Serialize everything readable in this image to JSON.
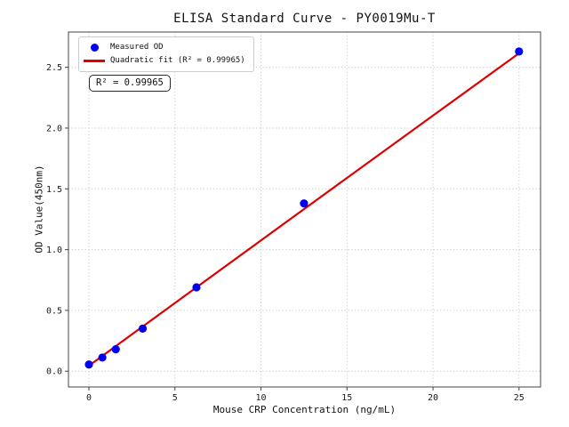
{
  "figure": {
    "title": "ELISA Standard Curve - PY0019Mu-T",
    "xlabel": "Mouse CRP Concentration (ng/mL)",
    "ylabel": "OD Value(450nm)",
    "r_squared_annotation": "R² = 0.99965"
  },
  "legend": {
    "position": "upper-left",
    "items": [
      {
        "label": "Measured OD",
        "marker": "dot",
        "color": "#0000ee"
      },
      {
        "label": "Quadratic fit (R² = 0.99965)",
        "marker": "line",
        "color": "#dd0000"
      }
    ]
  },
  "chart_data": {
    "type": "scatter",
    "title": "ELISA Standard Curve - PY0019Mu-T",
    "xlabel": "Mouse CRP Concentration (ng/mL)",
    "ylabel": "OD Value(450nm)",
    "xlim": [
      -1.19,
      26.25
    ],
    "ylim": [
      -0.13,
      2.79
    ],
    "xticks": [
      0,
      5,
      10,
      15,
      20,
      25
    ],
    "xtick_labels": [
      "0",
      "5",
      "10",
      "15",
      "20",
      "25"
    ],
    "yticks": [
      0,
      0.5,
      1.0,
      1.5,
      2.0,
      2.5
    ],
    "ytick_labels": [
      "0.0",
      "0.5",
      "1.0",
      "1.5",
      "2.0",
      "2.5"
    ],
    "grid": true,
    "grid_style": "dotted",
    "legend_position": "upper-left",
    "series": [
      {
        "name": "Measured OD",
        "type": "scatter",
        "color": "#0000ee",
        "x": [
          0,
          0.78,
          1.56,
          3.125,
          6.25,
          12.5,
          25
        ],
        "y": [
          0.055,
          0.112,
          0.18,
          0.35,
          0.69,
          1.38,
          2.63
        ]
      },
      {
        "name": "Quadratic fit (R² = 0.99965)",
        "type": "line",
        "color": "#dd0000",
        "x": [
          0,
          5,
          10,
          15,
          20,
          25
        ],
        "y": [
          0.045,
          0.561,
          1.076,
          1.59,
          2.103,
          2.615
        ]
      }
    ],
    "annotation": {
      "text": "R² = 0.99965",
      "r_squared": 0.99965
    }
  },
  "colors": {
    "background": "#ffffff",
    "axis": "#444444",
    "grid": "#cccccc",
    "tick_text": "#1a1a1a",
    "scatter": "#0000ee",
    "fit_line": "#dd0000"
  }
}
